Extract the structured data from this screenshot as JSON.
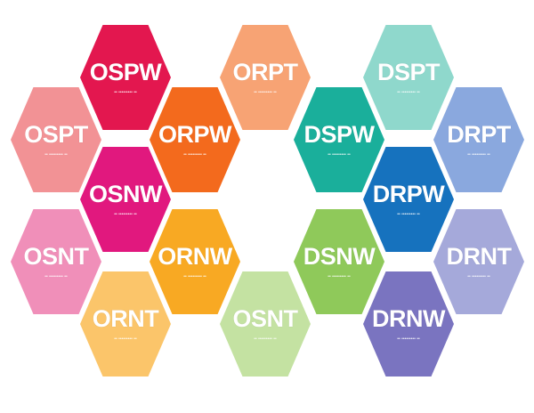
{
  "tile_subtitle": "•• ••••••••• ••",
  "tiles": [
    {
      "code": "OSPW",
      "color": "#e3174f"
    },
    {
      "code": "ORPT",
      "color": "#f7a374"
    },
    {
      "code": "DSPT",
      "color": "#8fd8cc"
    },
    {
      "code": "OSPT",
      "color": "#f29295"
    },
    {
      "code": "ORPW",
      "color": "#f36a1d"
    },
    {
      "code": "DSPW",
      "color": "#1aaf9b"
    },
    {
      "code": "DRPT",
      "color": "#8aa8de"
    },
    {
      "code": "OSNW",
      "color": "#e1187e"
    },
    {
      "code": "DRPW",
      "color": "#1672be"
    },
    {
      "code": "OSNT",
      "color": "#f08fb9"
    },
    {
      "code": "ORNW",
      "color": "#f8a923"
    },
    {
      "code": "DSNW",
      "color": "#8fc95a"
    },
    {
      "code": "DRNT",
      "color": "#a5a9da"
    },
    {
      "code": "ORNT",
      "color": "#fbc56a"
    },
    {
      "code": "OSNT",
      "color": "#c4e2a2"
    },
    {
      "code": "DRNW",
      "color": "#7a74c0"
    }
  ],
  "center_color": "#ffffff"
}
